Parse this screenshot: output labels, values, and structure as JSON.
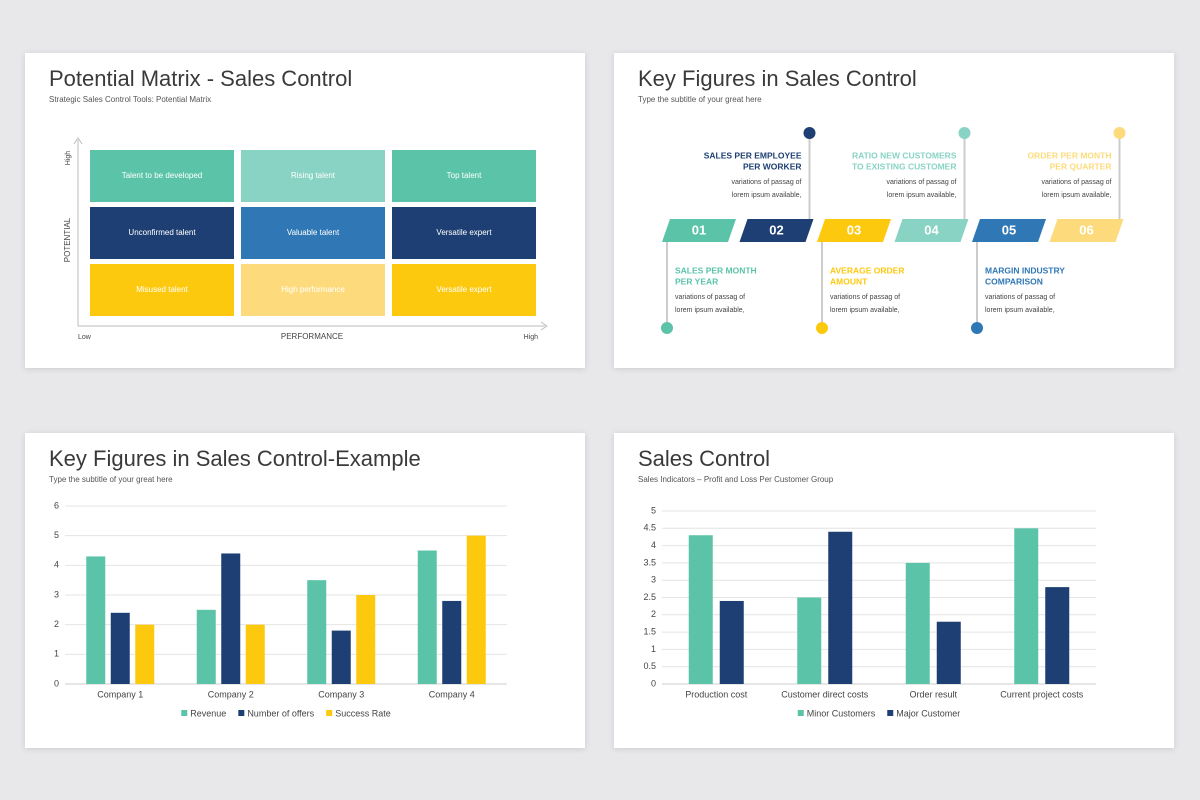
{
  "matrix": {
    "title": "Potential Matrix - Sales Control",
    "subtitle": "Strategic Sales Control Tools: Potential Matrix",
    "y_axis_label": "POTENTIAL",
    "y_high": "High",
    "x_axis_label": "PERFORMANCE",
    "x_low": "Low",
    "x_high": "High",
    "rows": [
      [
        {
          "label": "Talent to be developed",
          "color": "#5bc4a8"
        },
        {
          "label": "Rising talent",
          "color": "#88d3c4"
        },
        {
          "label": "Top talent",
          "color": "#5bc4a8"
        }
      ],
      [
        {
          "label": "Unconfirmed talent",
          "color": "#1e3f73"
        },
        {
          "label": "Valuable talent",
          "color": "#2f77b5"
        },
        {
          "label": "Versatile expert",
          "color": "#1e3f73"
        }
      ],
      [
        {
          "label": "Misused talent",
          "color": "#fdc90f"
        },
        {
          "label": "High performance",
          "color": "#fddb7c"
        },
        {
          "label": "Versatile expert",
          "color": "#fdc90f"
        }
      ]
    ]
  },
  "timeline": {
    "title": "Key Figures in Sales Control",
    "subtitle": "Type the subtitle of your great here",
    "steps": [
      {
        "number": "01",
        "color": "#5bc4a8",
        "side": "bottom",
        "title": [
          "SALES PER MONTH",
          "PER YEAR"
        ],
        "text": [
          "variations of passag of",
          "lorem ipsum available,"
        ]
      },
      {
        "number": "02",
        "color": "#1e3f73",
        "side": "top",
        "title": [
          "SALES PER EMPLOYEE",
          "PER WORKER"
        ],
        "text": [
          "variations of passag of",
          "lorem ipsum available,"
        ]
      },
      {
        "number": "03",
        "color": "#fdc90f",
        "side": "bottom",
        "title": [
          "AVERAGE ORDER",
          "AMOUNT"
        ],
        "text": [
          "variations of passag of",
          "lorem ipsum available,"
        ]
      },
      {
        "number": "04",
        "color": "#88d3c4",
        "side": "top",
        "title": [
          "RATIO NEW CUSTOMERS",
          "TO EXISTING CUSTOMER"
        ],
        "text": [
          "variations of passag of",
          "lorem ipsum available,"
        ]
      },
      {
        "number": "05",
        "color": "#2f77b5",
        "side": "bottom",
        "title": [
          "MARGIN INDUSTRY",
          "COMPARISON"
        ],
        "text": [
          "variations of passag of",
          "lorem ipsum available,"
        ]
      },
      {
        "number": "06",
        "color": "#fddb7c",
        "side": "top",
        "title": [
          "ORDER PER MONTH",
          "PER QUARTER"
        ],
        "text": [
          "variations of passag of",
          "lorem ipsum available,"
        ]
      }
    ]
  },
  "chart_data": [
    {
      "type": "bar",
      "title": "Key Figures in Sales Control-Example",
      "subtitle": "Type the subtitle of your great here",
      "categories": [
        "Company 1",
        "Company 2",
        "Company 3",
        "Company 4"
      ],
      "series": [
        {
          "name": "Revenue",
          "color": "#5bc4a8",
          "values": [
            4.3,
            2.5,
            3.5,
            4.5
          ]
        },
        {
          "name": "Number of offers",
          "color": "#1e3f73",
          "values": [
            2.4,
            4.4,
            1.8,
            2.8
          ]
        },
        {
          "name": "Success Rate",
          "color": "#fdc90f",
          "values": [
            2,
            2,
            3,
            5
          ]
        }
      ],
      "ylim": [
        0,
        6
      ],
      "yticks": [
        0,
        1,
        2,
        3,
        4,
        5,
        6
      ],
      "grid": true,
      "legend": "bottom"
    },
    {
      "type": "bar",
      "title": "Sales Control",
      "subtitle": "Sales Indicators – Profit and Loss Per Customer Group",
      "categories": [
        "Production cost",
        "Customer direct costs",
        "Order result",
        "Current project costs"
      ],
      "series": [
        {
          "name": "Minor Customers",
          "color": "#5bc4a8",
          "values": [
            4.3,
            2.5,
            3.5,
            4.5
          ]
        },
        {
          "name": "Major Customer",
          "color": "#1e3f73",
          "values": [
            2.4,
            4.4,
            1.8,
            2.8
          ]
        }
      ],
      "ylim": [
        0,
        5
      ],
      "yticks": [
        0,
        0.5,
        1,
        1.5,
        2,
        2.5,
        3,
        3.5,
        4,
        4.5,
        5
      ],
      "grid": true,
      "legend": "bottom"
    }
  ]
}
